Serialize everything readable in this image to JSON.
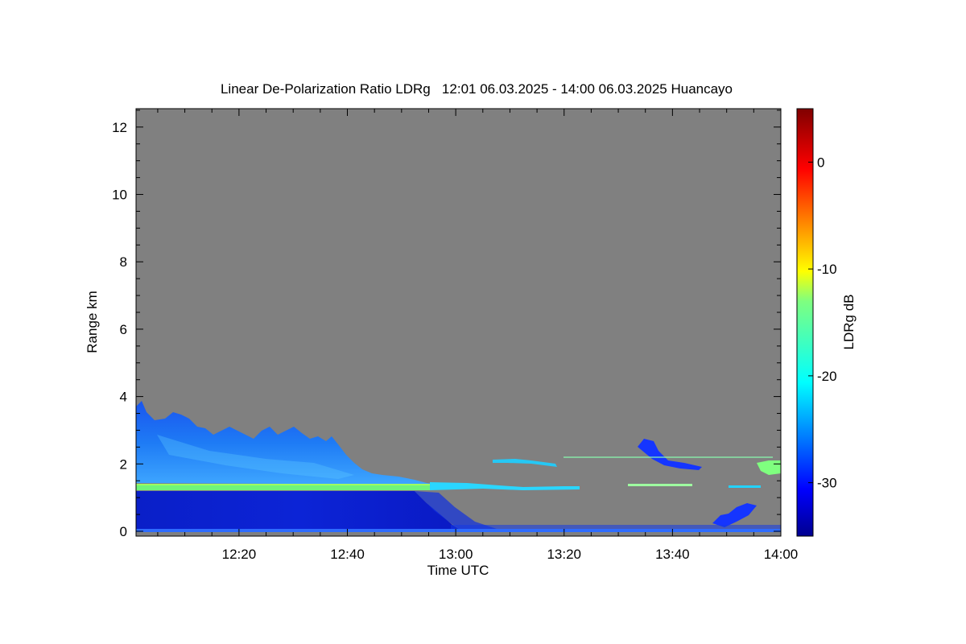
{
  "chart_data": {
    "type": "heatmap",
    "title": "Linear De-Polarization Ratio LDRg   12:01 06.03.2025 - 14:00 06.03.2025 Huancayo",
    "xlabel": "Time UTC",
    "ylabel": "Range km",
    "colorbar_label": "LDRg dB",
    "x_range": [
      "12:01",
      "14:00"
    ],
    "x_ticks": [
      "12:20",
      "12:40",
      "13:00",
      "13:20",
      "13:40",
      "14:00"
    ],
    "y_range": [
      0,
      13
    ],
    "y_ticks": [
      "0",
      "2",
      "4",
      "6",
      "8",
      "10",
      "12"
    ],
    "colorbar_range": [
      -35,
      5
    ],
    "colorbar_ticks": [
      "0",
      "-10",
      "-20",
      "-30"
    ],
    "colormap": "jet",
    "no_data_color": "#808080",
    "features": [
      {
        "time_start": "12:01",
        "time_end": "12:54",
        "range_start_km": 1.6,
        "range_end_km": 4.0,
        "ldr_db": -25
      },
      {
        "time_start": "12:01",
        "time_end": "13:00",
        "range_start_km": 0.1,
        "range_end_km": 1.45,
        "ldr_db": -32
      },
      {
        "time_start": "12:01",
        "time_end": "13:10",
        "range_start_km": 1.42,
        "range_end_km": 1.6,
        "ldr_db": -15
      },
      {
        "time_start": "13:35",
        "time_end": "13:45",
        "range_start_km": 2.2,
        "range_end_km": 2.9,
        "ldr_db": -32
      },
      {
        "time_start": "13:50",
        "time_end": "13:57",
        "range_start_km": 0.2,
        "range_end_km": 0.9,
        "ldr_db": -32
      },
      {
        "time_start": "13:55",
        "time_end": "14:00",
        "range_start_km": 1.9,
        "range_end_km": 2.3,
        "ldr_db": -13
      }
    ]
  }
}
